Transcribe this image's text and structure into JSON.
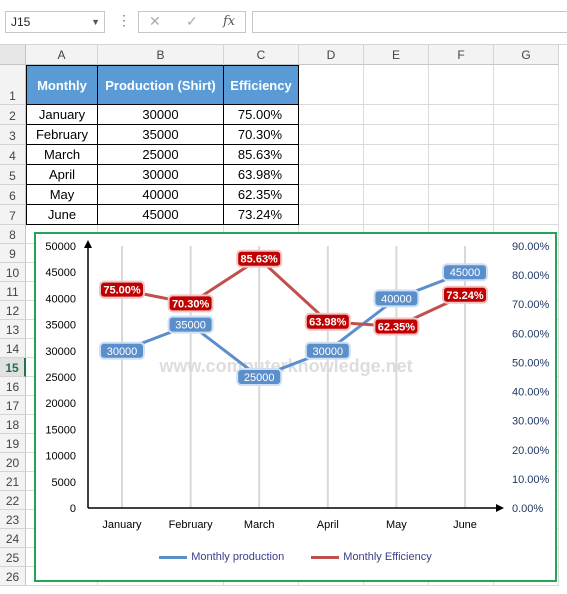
{
  "name_box": "J15",
  "formula_bar": {
    "cancel_icon": "✕",
    "enter_icon": "✓",
    "fx_label": "fx",
    "content": ""
  },
  "columns": [
    "A",
    "B",
    "C",
    "D",
    "E",
    "F",
    "G"
  ],
  "rows": [
    "1",
    "2",
    "3",
    "4",
    "5",
    "6",
    "7",
    "8",
    "9",
    "10",
    "11",
    "12",
    "13",
    "14",
    "15",
    "16",
    "17",
    "18",
    "19",
    "20",
    "21",
    "22",
    "23",
    "24",
    "25",
    "26"
  ],
  "active_row": "15",
  "table": {
    "headers": [
      "Monthly",
      "Production (Shirt)",
      "Efficiency"
    ],
    "rows": [
      [
        "January",
        "30000",
        "75.00%"
      ],
      [
        "February",
        "35000",
        "70.30%"
      ],
      [
        "March",
        "25000",
        "85.63%"
      ],
      [
        "April",
        "30000",
        "63.98%"
      ],
      [
        "May",
        "40000",
        "62.35%"
      ],
      [
        "June",
        "45000",
        "73.24%"
      ]
    ]
  },
  "colors": {
    "production": "#5b8fcb",
    "efficiency": "#c0504d",
    "chart_border": "#22a557",
    "header_fill": "#5b9bd5",
    "watermark": "#cfcfcf"
  },
  "watermark": "www.computerknowledge.net",
  "chart_data": {
    "type": "line",
    "categories": [
      "January",
      "February",
      "March",
      "April",
      "May",
      "June"
    ],
    "series": [
      {
        "name": "Monthly production",
        "axis": "left",
        "values": [
          30000,
          35000,
          25000,
          30000,
          40000,
          45000
        ],
        "labels": [
          "30000",
          "35000",
          "25000",
          "30000",
          "40000",
          "45000"
        ]
      },
      {
        "name": "Monthly Efficiency",
        "axis": "right",
        "values": [
          75.0,
          70.3,
          85.63,
          63.98,
          62.35,
          73.24
        ],
        "labels": [
          "75.00%",
          "70.30%",
          "85.63%",
          "63.98%",
          "62.35%",
          "73.24%"
        ]
      }
    ],
    "y_left": {
      "min": 0,
      "max": 50000,
      "ticks": [
        "0",
        "5000",
        "10000",
        "15000",
        "20000",
        "25000",
        "30000",
        "35000",
        "40000",
        "45000",
        "50000"
      ]
    },
    "y_right": {
      "min": 0,
      "max": 90,
      "ticks": [
        "0.00%",
        "10.00%",
        "20.00%",
        "30.00%",
        "40.00%",
        "50.00%",
        "60.00%",
        "70.00%",
        "80.00%",
        "90.00%"
      ]
    },
    "grid": "vertical",
    "legend": "bottom"
  }
}
